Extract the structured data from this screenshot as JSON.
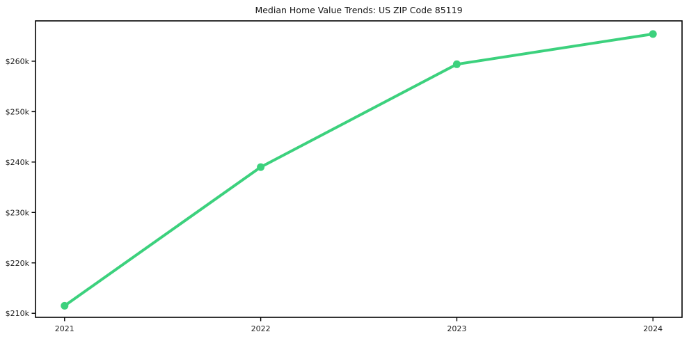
{
  "figure": {
    "background": "#ffffff"
  },
  "chart_data": {
    "type": "line",
    "title": "Median Home Value Trends: US ZIP Code 85119",
    "x": [
      "2021",
      "2022",
      "2023",
      "2024"
    ],
    "series": [
      {
        "name": "Median Home Value",
        "color": "#3cd17d",
        "values": [
          211500,
          239000,
          259400,
          265400
        ]
      }
    ],
    "xlabel": "",
    "ylabel": "",
    "ylim": [
      209200,
      268000
    ],
    "yticks": [
      {
        "value": 210000,
        "label": "$210k"
      },
      {
        "value": 220000,
        "label": "$220k"
      },
      {
        "value": 230000,
        "label": "$230k"
      },
      {
        "value": 240000,
        "label": "$240k"
      },
      {
        "value": 250000,
        "label": "$250k"
      },
      {
        "value": 260000,
        "label": "$260k"
      }
    ],
    "grid": false,
    "legend": false,
    "marker": "circle",
    "line_width": 4,
    "marker_radius": 5.5,
    "axis_color": "#000000",
    "tick_label_color": "#1c1c1c"
  }
}
